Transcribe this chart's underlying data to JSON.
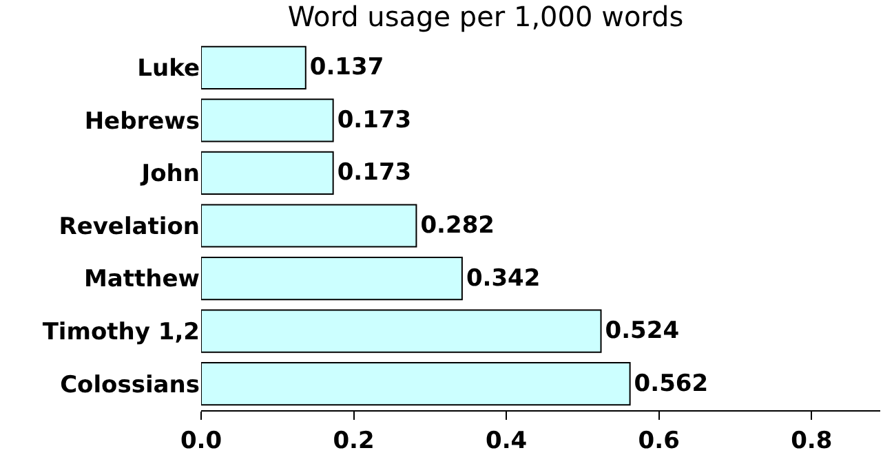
{
  "chart_data": {
    "type": "bar",
    "orientation": "horizontal",
    "title": "Word usage per 1,000 words",
    "categories": [
      "Luke",
      "Hebrews",
      "John",
      "Revelation",
      "Matthew",
      "Timothy 1,2",
      "Colossians"
    ],
    "values": [
      0.137,
      0.173,
      0.173,
      0.282,
      0.342,
      0.524,
      0.562
    ],
    "color": "#ccffff",
    "xlim": [
      0,
      0.89
    ],
    "xticks": [
      {
        "value": 0,
        "label": "0.0"
      },
      0.2,
      0.4,
      0.6,
      0.8
    ],
    "data_labels": true,
    "grid": false,
    "legend": false
  }
}
